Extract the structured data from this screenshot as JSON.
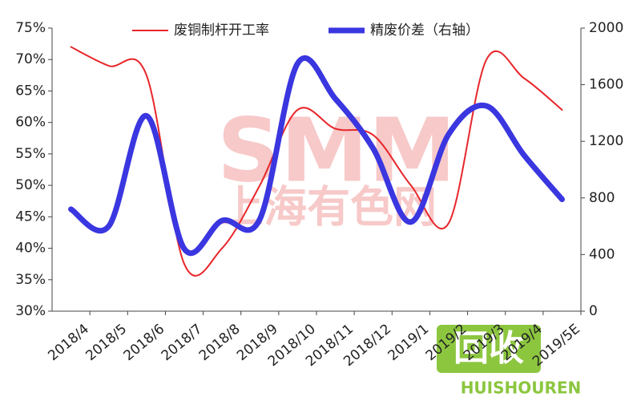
{
  "chart_data": {
    "type": "line",
    "categories": [
      "2018/4",
      "2018/5",
      "2018/6",
      "2018/7",
      "2018/8",
      "2018/9",
      "2018/10",
      "2018/11",
      "2018/12",
      "2019/1",
      "2019/2",
      "2019/3",
      "2019/4",
      "2019/5E"
    ],
    "series": [
      {
        "name": "废铜制杆开工率",
        "color": "#e8262b",
        "width": 2,
        "values": [
          72,
          69,
          67.5,
          37.5,
          40,
          50,
          62,
          59,
          58,
          50,
          44,
          70,
          67,
          62
        ]
      },
      {
        "name": "精废价差（右轴）",
        "color": "#3a36e0",
        "width": 7,
        "axis": "y2",
        "values": [
          720,
          600,
          1380,
          440,
          640,
          650,
          1750,
          1500,
          1150,
          630,
          1250,
          1450,
          1100,
          790
        ]
      }
    ],
    "ylim": [
      30,
      75
    ],
    "yticks": [
      {
        "value": 30,
        "label": "30%"
      },
      {
        "value": 35,
        "label": "35%"
      },
      {
        "value": 40,
        "label": "40%"
      },
      {
        "value": 45,
        "label": "45%"
      },
      {
        "value": 50,
        "label": "50%"
      },
      {
        "value": 55,
        "label": "55%"
      },
      {
        "value": 60,
        "label": "60%"
      },
      {
        "value": 65,
        "label": "65%"
      },
      {
        "value": 70,
        "label": "70%"
      },
      {
        "value": 75,
        "label": "75%"
      }
    ],
    "y2lim": [
      0,
      2000
    ],
    "y2ticks": [
      0,
      400,
      800,
      1200,
      1600,
      2000
    ],
    "watermarks": [
      "SMM",
      "上海有色网",
      "回收",
      "HUISHOUREN"
    ]
  }
}
